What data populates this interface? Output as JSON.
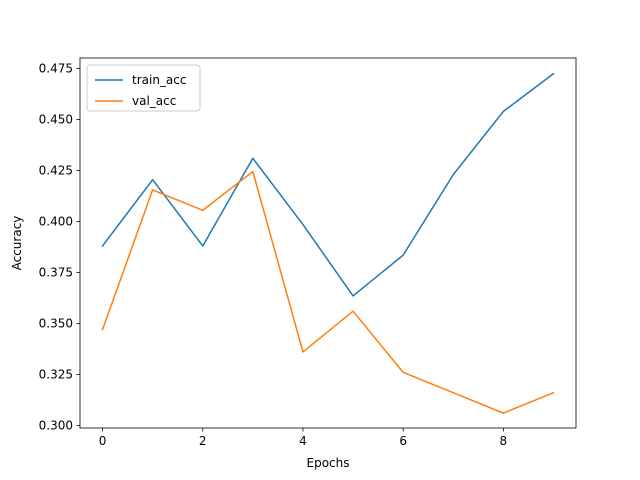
{
  "chart_data": {
    "type": "line",
    "xlabel": "Epochs",
    "ylabel": "Accuracy",
    "xlim": [
      -0.45,
      9.45
    ],
    "ylim": [
      0.2987,
      0.4802
    ],
    "xticks": [
      0,
      2,
      4,
      6,
      8
    ],
    "xtick_labels": [
      "0",
      "2",
      "4",
      "6",
      "8"
    ],
    "yticks": [
      0.3,
      0.325,
      0.35,
      0.375,
      0.4,
      0.425,
      0.45,
      0.475
    ],
    "ytick_labels": [
      "0.300",
      "0.325",
      "0.350",
      "0.375",
      "0.400",
      "0.425",
      "0.450",
      "0.475"
    ],
    "grid": false,
    "legend_position": "top-left",
    "x": [
      0,
      1,
      2,
      3,
      4,
      5,
      6,
      7,
      8,
      9
    ],
    "series": [
      {
        "name": "train_acc",
        "color": "#1f77b4",
        "values": [
          0.388,
          0.4205,
          0.388,
          0.431,
          0.3985,
          0.3635,
          0.3835,
          0.423,
          0.454,
          0.4725
        ]
      },
      {
        "name": "val_acc",
        "color": "#ff7f0e",
        "values": [
          0.347,
          0.4155,
          0.4055,
          0.4245,
          0.336,
          0.356,
          0.326,
          0.316,
          0.306,
          0.316
        ]
      }
    ]
  }
}
